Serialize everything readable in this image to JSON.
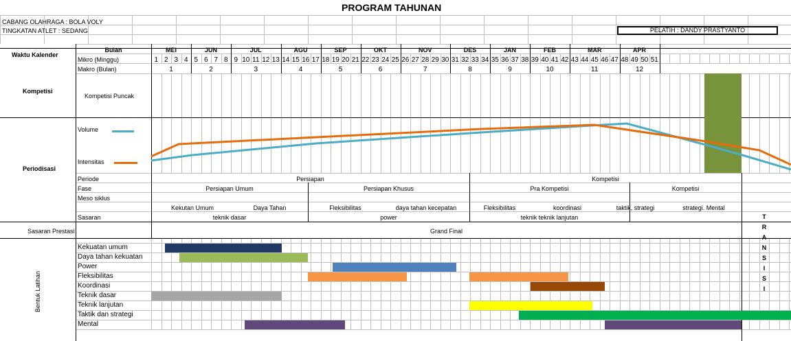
{
  "title": "PROGRAM TAHUNAN",
  "header": {
    "cabang": "CABANG OLAHRAGA : BOLA VOLY",
    "tingkatan": "TINGKATAN ATLET    : SEDANG",
    "pelatih": "PELATIH : DANDY PRASTYANTO"
  },
  "labels": {
    "waktu_kalender": "Waktu Kalender",
    "bulan": "Bulan",
    "mikro": "Mikro (Minggu)",
    "makro": "Makro (Bulan)",
    "kompetisi": "Kompetisi",
    "kompetisi_puncak": "Kompetisi Puncak",
    "periodisasi": "Periodisasi",
    "volume": "Volume",
    "intensitas": "Intensitas",
    "periode": "Periode",
    "fase": "Fase",
    "meso": "Meso siklus",
    "sasaran": "Sasaran",
    "sasaran_prestasi": "Sasaran Prestasi",
    "grand_final": "Grand Final",
    "bentuk_latihan": "Bentuk Latihan",
    "transisi": "TRANSISI"
  },
  "months": [
    "MEI",
    "JUN",
    "JUL",
    "AGU",
    "SEP",
    "OKT",
    "NOV",
    "DES",
    "JAN",
    "FEB",
    "MAR",
    "APR"
  ],
  "weeks": [
    "1",
    "2",
    "3",
    "4",
    "5",
    "6",
    "7",
    "8",
    "9",
    "10",
    "11",
    "12",
    "13",
    "14",
    "15",
    "16",
    "17",
    "18",
    "19",
    "20",
    "21",
    "22",
    "23",
    "24",
    "25",
    "26",
    "27",
    "28",
    "29",
    "30",
    "31",
    "32",
    "33",
    "34",
    "35",
    "36",
    "37",
    "38",
    "39",
    "40",
    "41",
    "42",
    "43",
    "44",
    "45",
    "46",
    "47",
    "48",
    "49",
    "50",
    "51"
  ],
  "makro": [
    "1",
    "2",
    "3",
    "4",
    "5",
    "6",
    "7",
    "8",
    "9",
    "10",
    "11",
    "12"
  ],
  "periode": [
    "Persiapan",
    "Kompetisi"
  ],
  "fase": [
    "Persiapan Umum",
    "Persiapan Khusus",
    "Pra Kompetisi",
    "Kompetisi"
  ],
  "meso": [
    "Kekutan Umum",
    "Daya Tahan",
    "Fleksibilitas",
    "daya tahan kecepatan",
    "Fleksibilitas",
    "koordinasi",
    "taktik, strategi",
    "strategi. Mental"
  ],
  "sasaran": [
    "teknik dasar",
    "power",
    "teknik teknik lanjutan"
  ],
  "training": [
    {
      "label": "Kekuatan umum",
      "color": "#1f3864"
    },
    {
      "label": "Daya tahan kekuatan",
      "color": "#9bbb59"
    },
    {
      "label": "Power",
      "color": "#4f81bd"
    },
    {
      "label": "Fleksibilitas",
      "color": "#f79646"
    },
    {
      "label": "Koordinasi",
      "color": "#974706"
    },
    {
      "label": "Teknik dasar",
      "color": "#a6a6a6"
    },
    {
      "label": "Teknik lanjutan",
      "color": "#ffff00"
    },
    {
      "label": "Taktik dan strategi",
      "color": "#00b050"
    },
    {
      "label": "Mental",
      "color": "#60497a"
    }
  ],
  "colors": {
    "volume": "#4bacc6",
    "intensitas": "#e46c0a",
    "kompetisi": "#77933c",
    "grid": "#bfbfbf"
  }
}
